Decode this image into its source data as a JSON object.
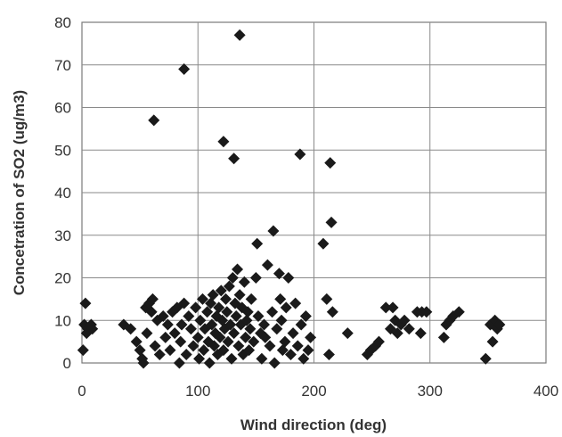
{
  "chart_data": {
    "type": "scatter",
    "title": "",
    "xlabel": "Wind direction (deg)",
    "ylabel": "Concetration of SO2 (ug/m3)",
    "xlim": [
      0,
      400
    ],
    "ylim": [
      0,
      80
    ],
    "x_ticks": [
      "0",
      "100",
      "200",
      "300",
      "400"
    ],
    "y_ticks": [
      "0",
      "10",
      "20",
      "30",
      "40",
      "50",
      "60",
      "70",
      "80"
    ],
    "grid": true,
    "legend": "none",
    "marker": "diamond",
    "marker_color": "#1a1a1a",
    "series": [
      {
        "points": [
          [
            1,
            3
          ],
          [
            2,
            9
          ],
          [
            3,
            14
          ],
          [
            4,
            7
          ],
          [
            5,
            8
          ],
          [
            8,
            9
          ],
          [
            9,
            8
          ],
          [
            36,
            9
          ],
          [
            42,
            8
          ],
          [
            47,
            5
          ],
          [
            50,
            3
          ],
          [
            52,
            1
          ],
          [
            53,
            0
          ],
          [
            55,
            13
          ],
          [
            56,
            7
          ],
          [
            58,
            14
          ],
          [
            60,
            12
          ],
          [
            61,
            15
          ],
          [
            63,
            4
          ],
          [
            62,
            57
          ],
          [
            65,
            10
          ],
          [
            67,
            2
          ],
          [
            70,
            11
          ],
          [
            72,
            6
          ],
          [
            74,
            9
          ],
          [
            76,
            3
          ],
          [
            78,
            12
          ],
          [
            80,
            7
          ],
          [
            82,
            13
          ],
          [
            84,
            0
          ],
          [
            85,
            5
          ],
          [
            86,
            9
          ],
          [
            88,
            69
          ],
          [
            88,
            14
          ],
          [
            90,
            2
          ],
          [
            92,
            11
          ],
          [
            94,
            8
          ],
          [
            96,
            4
          ],
          [
            98,
            13
          ],
          [
            100,
            6
          ],
          [
            101,
            1
          ],
          [
            102,
            10
          ],
          [
            104,
            15
          ],
          [
            105,
            3
          ],
          [
            106,
            8
          ],
          [
            108,
            12
          ],
          [
            109,
            5
          ],
          [
            110,
            0
          ],
          [
            111,
            14
          ],
          [
            112,
            9
          ],
          [
            113,
            16
          ],
          [
            114,
            4
          ],
          [
            115,
            7
          ],
          [
            116,
            11
          ],
          [
            117,
            2
          ],
          [
            118,
            13
          ],
          [
            119,
            6
          ],
          [
            120,
            17
          ],
          [
            121,
            10
          ],
          [
            122,
            52
          ],
          [
            122,
            3
          ],
          [
            123,
            8
          ],
          [
            124,
            15
          ],
          [
            125,
            12
          ],
          [
            126,
            5
          ],
          [
            127,
            18
          ],
          [
            128,
            9
          ],
          [
            129,
            1
          ],
          [
            130,
            20
          ],
          [
            131,
            48
          ],
          [
            131,
            7
          ],
          [
            132,
            14
          ],
          [
            133,
            11
          ],
          [
            134,
            22
          ],
          [
            135,
            4
          ],
          [
            136,
            77
          ],
          [
            136,
            16
          ],
          [
            137,
            9
          ],
          [
            138,
            13
          ],
          [
            139,
            2
          ],
          [
            140,
            19
          ],
          [
            141,
            6
          ],
          [
            142,
            10
          ],
          [
            143,
            12
          ],
          [
            144,
            3
          ],
          [
            145,
            8
          ],
          [
            146,
            15
          ],
          [
            148,
            5
          ],
          [
            150,
            20
          ],
          [
            151,
            28
          ],
          [
            152,
            11
          ],
          [
            154,
            7
          ],
          [
            155,
            1
          ],
          [
            157,
            9
          ],
          [
            158,
            6
          ],
          [
            160,
            23
          ],
          [
            162,
            4
          ],
          [
            164,
            12
          ],
          [
            165,
            31
          ],
          [
            166,
            0
          ],
          [
            168,
            8
          ],
          [
            170,
            21
          ],
          [
            171,
            15
          ],
          [
            172,
            10
          ],
          [
            173,
            3
          ],
          [
            175,
            5
          ],
          [
            176,
            13
          ],
          [
            178,
            20
          ],
          [
            180,
            2
          ],
          [
            182,
            7
          ],
          [
            184,
            14
          ],
          [
            186,
            4
          ],
          [
            188,
            49
          ],
          [
            189,
            9
          ],
          [
            191,
            1
          ],
          [
            193,
            11
          ],
          [
            195,
            3
          ],
          [
            197,
            6
          ],
          [
            208,
            28
          ],
          [
            211,
            15
          ],
          [
            213,
            2
          ],
          [
            214,
            47
          ],
          [
            215,
            33
          ],
          [
            216,
            12
          ],
          [
            229,
            7
          ],
          [
            246,
            2
          ],
          [
            249,
            3
          ],
          [
            253,
            4
          ],
          [
            256,
            5
          ],
          [
            262,
            13
          ],
          [
            266,
            8
          ],
          [
            268,
            13
          ],
          [
            270,
            10
          ],
          [
            272,
            7
          ],
          [
            275,
            9
          ],
          [
            278,
            10
          ],
          [
            282,
            8
          ],
          [
            289,
            12
          ],
          [
            292,
            7
          ],
          [
            293,
            12
          ],
          [
            297,
            12
          ],
          [
            312,
            6
          ],
          [
            314,
            9
          ],
          [
            317,
            10
          ],
          [
            320,
            11
          ],
          [
            325,
            12
          ],
          [
            348,
            1
          ],
          [
            352,
            9
          ],
          [
            354,
            5
          ],
          [
            356,
            10
          ],
          [
            358,
            8
          ],
          [
            360,
            9
          ]
        ]
      }
    ]
  }
}
